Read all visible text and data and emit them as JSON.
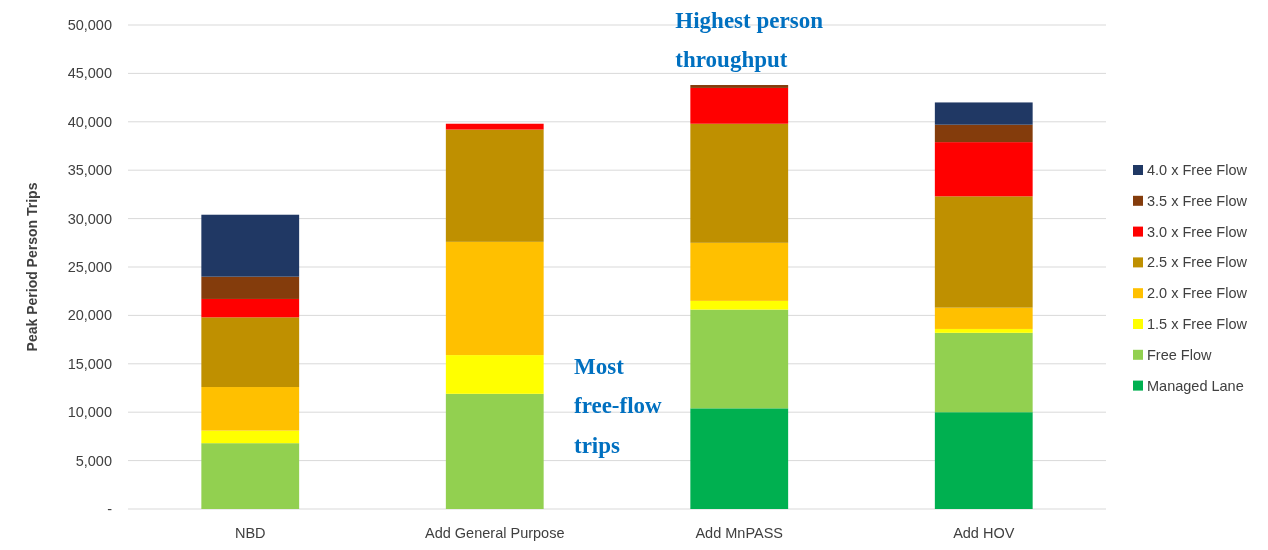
{
  "chart_data": {
    "type": "bar",
    "stacked": true,
    "ylabel": "Peak Period Person Trips",
    "categories": [
      "NBD",
      "Add General Purpose",
      "Add MnPASS",
      "Add HOV"
    ],
    "series": [
      {
        "name": "Managed Lane",
        "color": "#00b050",
        "values": [
          null,
          null,
          10400,
          10000
        ]
      },
      {
        "name": "Free Flow",
        "color": "#92d050",
        "values": [
          6800,
          11900,
          10200,
          8200
        ]
      },
      {
        "name": "1.5 x Free Flow",
        "color": "#ffff00",
        "values": [
          1300,
          4000,
          900,
          400
        ]
      },
      {
        "name": "2.0 x Free Flow",
        "color": "#ffc000",
        "values": [
          4500,
          11700,
          6000,
          2200
        ]
      },
      {
        "name": "2.5 x Free Flow",
        "color": "#bf9000",
        "values": [
          7200,
          11600,
          12300,
          11500
        ]
      },
      {
        "name": "3.0 x Free Flow",
        "color": "#ff0000",
        "values": [
          1900,
          600,
          3700,
          5600
        ]
      },
      {
        "name": "3.5 x Free Flow",
        "color": "#843c0c",
        "values": [
          2300,
          null,
          300,
          1800
        ]
      },
      {
        "name": "4.0 x Free Flow",
        "color": "#203864",
        "values": [
          6400,
          null,
          null,
          2300
        ]
      }
    ],
    "ylim": [
      0,
      50000
    ],
    "yticks": [
      {
        "value": 0,
        "label": "-"
      },
      {
        "value": 5000,
        "label": "5,000"
      },
      {
        "value": 10000,
        "label": "10,000"
      },
      {
        "value": 15000,
        "label": "15,000"
      },
      {
        "value": 20000,
        "label": "20,000"
      },
      {
        "value": 25000,
        "label": "25,000"
      },
      {
        "value": 30000,
        "label": "30,000"
      },
      {
        "value": 35000,
        "label": "35,000"
      },
      {
        "value": 40000,
        "label": "40,000"
      },
      {
        "value": 45000,
        "label": "45,000"
      },
      {
        "value": 50000,
        "label": "50,000"
      }
    ],
    "grid": "y",
    "legend": "right",
    "annotations": [
      {
        "text": "Highest person throughput",
        "x": "Add MnPASS",
        "y": 43800
      },
      "Most free-flow trips"
    ]
  }
}
